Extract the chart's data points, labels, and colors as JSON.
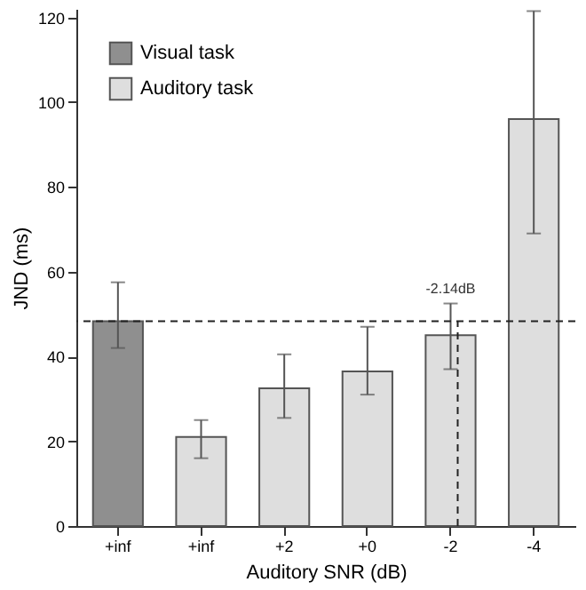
{
  "chart_data": {
    "type": "bar",
    "xlabel": "Auditory SNR (dB)",
    "ylabel": "JND (ms)",
    "categories": [
      "+inf",
      "+inf",
      "+2",
      "+0",
      "-2",
      "-4"
    ],
    "series": [
      {
        "name": "Visual task",
        "color": "#8f8f8f",
        "values": [
          48.3,
          null,
          null,
          null,
          null,
          null
        ],
        "errors": [
          [
            42,
            57.5
          ],
          null,
          null,
          null,
          null,
          null
        ]
      },
      {
        "name": "Auditory task",
        "color": "#dedede",
        "values": [
          null,
          21,
          32.5,
          36.5,
          45,
          96
        ],
        "errors": [
          null,
          [
            16,
            25
          ],
          [
            25.5,
            40.5
          ],
          [
            31,
            47
          ],
          [
            37,
            52.5
          ],
          [
            69,
            121.5
          ]
        ]
      }
    ],
    "ylim": [
      0,
      122
    ],
    "yticks": [
      0,
      20,
      40,
      60,
      80,
      100,
      120
    ],
    "grid": false,
    "legend": "top left",
    "ref_lines": [
      {
        "axis": "y",
        "value": 48.3,
        "line_style": "dashed"
      },
      {
        "axis": "x",
        "value": "-2",
        "line_style": "dashed"
      }
    ],
    "annotations": [
      {
        "text": "-2.14dB",
        "x": "-2",
        "y": 48.3
      }
    ]
  }
}
